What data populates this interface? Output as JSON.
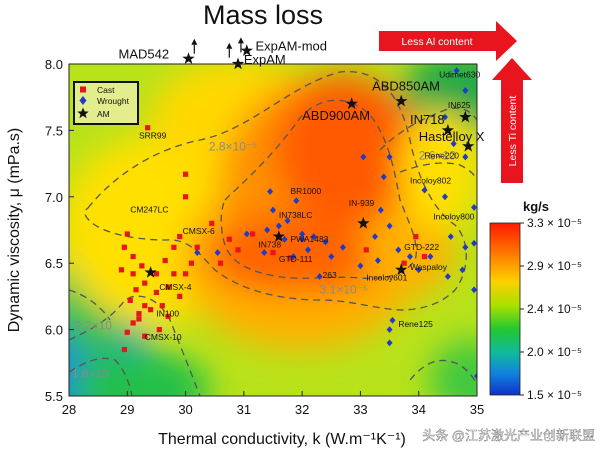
{
  "chart_data": {
    "type": "scatter",
    "title": "Mass loss",
    "xlabel": "Thermal conductivity, k (W.m⁻¹K⁻¹)",
    "ylabel": "Dynamic viscosity, μ (mPa.s)",
    "xlim": [
      28,
      35
    ],
    "ylim": [
      5.5,
      8.0
    ],
    "xticks": [
      "28",
      "29",
      "30",
      "31",
      "32",
      "33",
      "34",
      "35"
    ],
    "yticks": [
      "5.5",
      "6.0",
      "6.5",
      "7.0",
      "7.5",
      "8.0"
    ],
    "colorbar": {
      "unit": "kg/s",
      "min": 1.5e-05,
      "max": 3.3e-05,
      "ticks": [
        "3.3 × 10⁻⁵",
        "2.9 × 10⁻⁵",
        "2.4 × 10⁻⁵",
        "2.0 × 10⁻⁵",
        "1.5 × 10⁻⁵"
      ],
      "colors": [
        "#ff1a00",
        "#ff7a00",
        "#ffd000",
        "#a8e000",
        "#22c830",
        "#10b8a0",
        "#1080e0",
        "#1030c8"
      ]
    },
    "contour_labels": [
      {
        "text": "2.8×10⁻⁵",
        "x": 30.4,
        "y": 7.35
      },
      {
        "text": "3.1×10⁻⁵",
        "x": 32.3,
        "y": 6.27
      },
      {
        "text": "2.6×10",
        "x": 34.0,
        "y": 7.28
      },
      {
        "text": "2.2×10",
        "x": 28.1,
        "y": 6.0
      },
      {
        "text": "1.8×10",
        "x": 28.05,
        "y": 5.64
      }
    ],
    "legend": {
      "position": "top-left",
      "entries": [
        {
          "label": "Cast",
          "marker": "square",
          "color": "#e8141e"
        },
        {
          "label": "Wrought",
          "marker": "diamond",
          "color": "#1e3cc8"
        },
        {
          "label": "AM",
          "marker": "star",
          "color": "#111111"
        }
      ]
    },
    "series": [
      {
        "name": "Cast",
        "points": [
          [
            29.0,
            6.72
          ],
          [
            28.95,
            6.62
          ],
          [
            29.1,
            6.55
          ],
          [
            28.9,
            6.45
          ],
          [
            29.1,
            6.42
          ],
          [
            29.15,
            6.3
          ],
          [
            29.05,
            6.22
          ],
          [
            29.2,
            6.12
          ],
          [
            29.3,
            6.18
          ],
          [
            29.4,
            6.15
          ],
          [
            29.3,
            6.35
          ],
          [
            29.5,
            6.28
          ],
          [
            29.5,
            6.42
          ],
          [
            29.25,
            6.48
          ],
          [
            29.6,
            6.18
          ],
          [
            29.1,
            6.05
          ],
          [
            29.0,
            5.98
          ],
          [
            28.95,
            5.85
          ],
          [
            29.2,
            6.08
          ],
          [
            29.3,
            5.95
          ],
          [
            29.55,
            6.0
          ],
          [
            29.7,
            6.1
          ],
          [
            29.7,
            6.32
          ],
          [
            29.65,
            6.52
          ],
          [
            29.8,
            6.62
          ],
          [
            29.9,
            6.7
          ],
          [
            29.8,
            6.42
          ],
          [
            30.0,
            6.42
          ],
          [
            30.1,
            6.5
          ],
          [
            29.9,
            6.25
          ],
          [
            30.0,
            7.17
          ],
          [
            30.0,
            7.0
          ],
          [
            29.35,
            7.52
          ],
          [
            30.2,
            6.62
          ],
          [
            30.45,
            6.8
          ],
          [
            30.6,
            6.5
          ],
          [
            30.75,
            6.68
          ],
          [
            30.9,
            6.6
          ],
          [
            31.15,
            6.72
          ],
          [
            31.5,
            6.58
          ],
          [
            31.8,
            6.54
          ],
          [
            33.95,
            6.7
          ],
          [
            33.75,
            6.5
          ],
          [
            33.1,
            6.6
          ],
          [
            34.1,
            6.55
          ]
        ]
      },
      {
        "name": "Wrought",
        "points": [
          [
            31.35,
            6.58
          ],
          [
            31.4,
            6.75
          ],
          [
            31.5,
            6.9
          ],
          [
            31.7,
            6.68
          ],
          [
            31.85,
            6.55
          ],
          [
            32.0,
            6.72
          ],
          [
            32.2,
            6.7
          ],
          [
            32.4,
            6.66
          ],
          [
            32.1,
            6.6
          ],
          [
            32.5,
            6.55
          ],
          [
            32.3,
            6.4
          ],
          [
            31.9,
            6.97
          ],
          [
            31.45,
            7.04
          ],
          [
            31.6,
            6.78
          ],
          [
            32.7,
            6.62
          ],
          [
            33.0,
            6.48
          ],
          [
            33.3,
            6.52
          ],
          [
            33.25,
            6.7
          ],
          [
            33.35,
            6.9
          ],
          [
            33.5,
            6.78
          ],
          [
            33.65,
            6.6
          ],
          [
            33.85,
            6.55
          ],
          [
            34.0,
            6.45
          ],
          [
            34.2,
            6.55
          ],
          [
            34.5,
            6.4
          ],
          [
            34.55,
            6.7
          ],
          [
            34.8,
            6.62
          ],
          [
            34.75,
            6.45
          ],
          [
            34.95,
            6.65
          ],
          [
            34.95,
            6.3
          ],
          [
            35.0,
            5.65
          ],
          [
            34.95,
            6.92
          ],
          [
            33.05,
            7.3
          ],
          [
            33.4,
            7.15
          ],
          [
            33.5,
            7.3
          ],
          [
            34.1,
            7.05
          ],
          [
            34.45,
            7.0
          ],
          [
            34.45,
            7.6
          ],
          [
            34.6,
            7.4
          ],
          [
            34.8,
            7.3
          ],
          [
            34.65,
            7.95
          ],
          [
            34.8,
            7.8
          ],
          [
            33.55,
            6.07
          ],
          [
            33.5,
            6.0
          ],
          [
            33.5,
            5.9
          ],
          [
            32.0,
            6.68
          ],
          [
            31.75,
            6.82
          ],
          [
            30.2,
            6.58
          ],
          [
            30.55,
            6.58
          ],
          [
            31.05,
            6.72
          ]
        ]
      },
      {
        "name": "AM",
        "points": [
          [
            29.4,
            6.43
          ],
          [
            31.6,
            6.7
          ],
          [
            32.85,
            7.7
          ],
          [
            33.05,
            6.8
          ],
          [
            33.7,
            7.72
          ],
          [
            33.7,
            6.45
          ],
          [
            34.5,
            7.5
          ],
          [
            34.8,
            7.6
          ],
          [
            34.85,
            7.38
          ]
        ]
      }
    ],
    "point_labels": [
      {
        "text": "SRR99",
        "x": 29.2,
        "y": 7.44
      },
      {
        "text": "CM247LC",
        "x": 29.05,
        "y": 6.88
      },
      {
        "text": "CMSX-6",
        "x": 29.95,
        "y": 6.72
      },
      {
        "text": "CMSX-4",
        "x": 29.55,
        "y": 6.3
      },
      {
        "text": "IN100",
        "x": 29.5,
        "y": 6.1
      },
      {
        "text": "CMSX-10",
        "x": 29.3,
        "y": 5.92
      },
      {
        "text": "IN738LC",
        "x": 31.6,
        "y": 6.84
      },
      {
        "text": "IN738",
        "x": 31.25,
        "y": 6.62
      },
      {
        "text": "PWA1483",
        "x": 31.8,
        "y": 6.66
      },
      {
        "text": "GTD-111",
        "x": 31.6,
        "y": 6.51
      },
      {
        "text": "263",
        "x": 32.35,
        "y": 6.39
      },
      {
        "text": "IN-939",
        "x": 32.8,
        "y": 6.93
      },
      {
        "text": "BR1000",
        "x": 31.8,
        "y": 7.02
      },
      {
        "text": "GTD-222",
        "x": 33.75,
        "y": 6.6
      },
      {
        "text": "Waspaloy",
        "x": 33.85,
        "y": 6.45
      },
      {
        "text": "Incoloy601",
        "x": 33.1,
        "y": 6.37
      },
      {
        "text": "Rene125",
        "x": 33.65,
        "y": 6.02
      },
      {
        "text": "Incoloy802",
        "x": 33.85,
        "y": 7.1
      },
      {
        "text": "Incoloy800",
        "x": 34.25,
        "y": 6.83
      },
      {
        "text": "Rene220",
        "x": 34.1,
        "y": 7.29
      },
      {
        "text": "Udimet630",
        "x": 34.35,
        "y": 7.9
      },
      {
        "text": "IN625",
        "x": 34.5,
        "y": 7.67
      }
    ],
    "point_labels_large": [
      {
        "text": "ABD850AM",
        "x": 33.2,
        "y": 7.8
      },
      {
        "text": "ABD900AM",
        "x": 32.0,
        "y": 7.58
      },
      {
        "text": "IN718",
        "x": 33.85,
        "y": 7.55
      },
      {
        "text": "Hastelloy X",
        "x": 34.0,
        "y": 7.42
      },
      {
        "text": "ExpAM-mod",
        "x": 31.2,
        "y": 8.1
      },
      {
        "text": "ExpAM",
        "x": 31.0,
        "y": 8.0
      },
      {
        "text": "MAD542",
        "x": 28.85,
        "y": 8.04
      }
    ],
    "offchart_markers": [
      {
        "kind": "star",
        "x": 30.05,
        "y": 8.04
      },
      {
        "kind": "star",
        "x": 30.9,
        "y": 8.0
      },
      {
        "kind": "star",
        "x": 31.05,
        "y": 8.1
      },
      {
        "kind": "up-arrow",
        "x": 30.15,
        "y": 8.13
      },
      {
        "kind": "up-arrow",
        "x": 30.75,
        "y": 8.1
      },
      {
        "kind": "up-arrow",
        "x": 30.95,
        "y": 8.14
      }
    ],
    "annotations": [
      {
        "text": "Less Al content",
        "direction": "right",
        "color": "#e8141e"
      },
      {
        "text": "Less Ti content",
        "direction": "up",
        "color": "#e8141e"
      }
    ],
    "grid": false
  },
  "watermark": "头条 @江苏激光产业创新联盟"
}
